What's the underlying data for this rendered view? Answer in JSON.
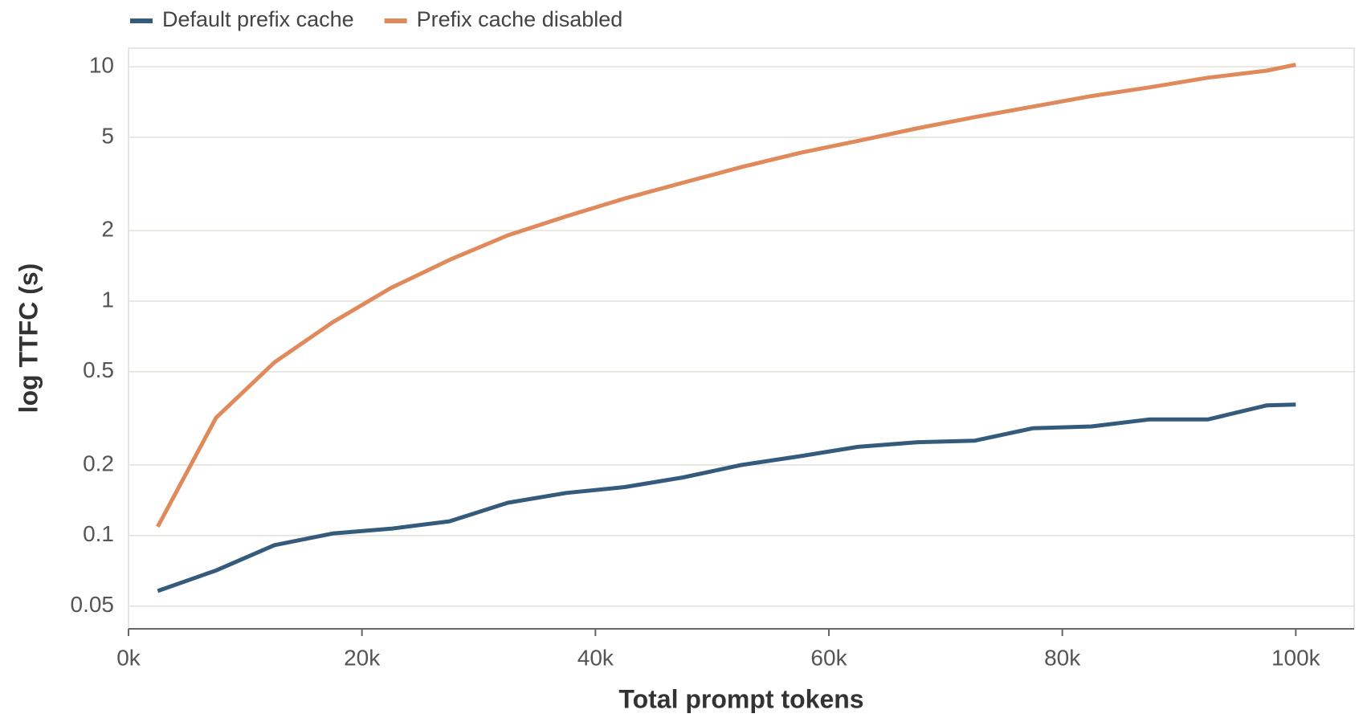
{
  "chart_data": {
    "type": "line",
    "x_label": "Total prompt tokens",
    "y_label": "log TTFC (s)",
    "x": [
      2500,
      7500,
      12500,
      17500,
      22500,
      27500,
      32500,
      37500,
      42500,
      47500,
      52500,
      57500,
      62500,
      67500,
      72500,
      77500,
      82500,
      87500,
      92500,
      97500,
      100000
    ],
    "series": [
      {
        "name": "Default prefix cache",
        "color": "#345a7c",
        "values": [
          0.058,
          0.071,
          0.091,
          0.102,
          0.107,
          0.115,
          0.138,
          0.152,
          0.161,
          0.177,
          0.2,
          0.218,
          0.239,
          0.25,
          0.254,
          0.287,
          0.292,
          0.313,
          0.313,
          0.359,
          0.362
        ]
      },
      {
        "name": "Prefix cache disabled",
        "color": "#e08a5c",
        "values": [
          0.109,
          0.318,
          0.548,
          0.813,
          1.14,
          1.5,
          1.91,
          2.3,
          2.74,
          3.2,
          3.73,
          4.29,
          4.83,
          5.45,
          6.1,
          6.76,
          7.5,
          8.17,
          8.98,
          9.62,
          10.2
        ]
      }
    ],
    "xlim": [
      0,
      105000
    ],
    "xticks": [
      {
        "value": 0,
        "label": "0k"
      },
      {
        "value": 20000,
        "label": "20k"
      },
      {
        "value": 40000,
        "label": "40k"
      },
      {
        "value": 60000,
        "label": "60k"
      },
      {
        "value": 80000,
        "label": "80k"
      },
      {
        "value": 100000,
        "label": "100k"
      }
    ],
    "ylim": [
      0.04,
      12
    ],
    "yticks": [
      0.05,
      0.1,
      0.2,
      0.5,
      1,
      2,
      5,
      10
    ],
    "y_scale": "log",
    "grid": true,
    "legend": "top-left"
  }
}
